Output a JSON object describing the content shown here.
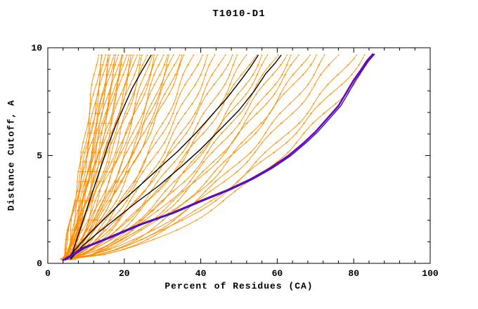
{
  "chart_data": {
    "type": "line",
    "title": "T1010-D1",
    "xlabel": "Percent of Residues (CA)",
    "ylabel": "Distance Cutoff, A",
    "xlim": [
      0,
      100
    ],
    "ylim": [
      0,
      10
    ],
    "xticks": [
      0,
      20,
      40,
      60,
      80,
      100
    ],
    "yticks": [
      0,
      5,
      10
    ],
    "x_minor_step": 4,
    "y_minor_step": 1,
    "grid": false,
    "legend": null,
    "frame_color": "#000000",
    "ensemble_color": "#ff8c00",
    "ensemble_count": 54,
    "ensemble": [
      [
        5,
        13,
        1.05
      ],
      [
        4,
        14,
        1.0
      ],
      [
        6,
        14.5,
        1.1
      ],
      [
        5,
        15,
        0.95
      ],
      [
        4,
        15.5,
        1.0
      ],
      [
        7,
        16,
        1.05
      ],
      [
        5,
        16.5,
        0.9
      ],
      [
        6,
        17,
        1.0
      ],
      [
        4,
        17.5,
        1.1
      ],
      [
        5,
        18,
        0.95
      ],
      [
        6,
        18.5,
        1.0
      ],
      [
        4,
        19,
        0.9
      ],
      [
        7,
        19.5,
        1.05
      ],
      [
        5,
        20,
        1.0
      ],
      [
        6,
        20.5,
        0.95
      ],
      [
        4,
        21,
        0.85
      ],
      [
        5,
        22,
        0.9
      ],
      [
        6,
        22.5,
        0.8
      ],
      [
        4,
        23,
        0.85
      ],
      [
        5,
        24,
        0.9
      ],
      [
        6,
        25,
        0.8
      ],
      [
        4,
        26,
        0.85
      ],
      [
        5,
        27,
        0.75
      ],
      [
        6,
        28,
        0.8
      ],
      [
        4,
        29,
        0.85
      ],
      [
        5,
        30,
        0.75
      ],
      [
        6,
        31,
        0.8
      ],
      [
        5,
        32,
        0.7
      ],
      [
        4,
        33,
        0.75
      ],
      [
        6,
        34,
        0.8
      ],
      [
        5,
        35,
        0.7
      ],
      [
        4,
        36,
        0.75
      ],
      [
        6,
        38,
        0.7
      ],
      [
        5,
        40,
        0.72
      ],
      [
        4,
        42,
        0.68
      ],
      [
        6,
        44,
        0.7
      ],
      [
        5,
        46,
        0.65
      ],
      [
        4,
        48,
        0.68
      ],
      [
        6,
        50,
        0.66
      ],
      [
        5,
        52,
        0.62
      ],
      [
        4,
        54,
        0.65
      ],
      [
        6,
        56,
        0.6
      ],
      [
        5,
        58,
        0.64
      ],
      [
        4,
        60,
        0.6
      ],
      [
        6,
        62,
        0.62
      ],
      [
        5,
        64,
        0.58
      ],
      [
        4,
        66,
        0.6
      ],
      [
        6,
        68,
        0.56
      ],
      [
        5,
        70,
        0.6
      ],
      [
        4,
        73,
        0.55
      ],
      [
        6,
        76,
        0.58
      ],
      [
        5,
        80,
        0.55
      ],
      [
        4,
        83,
        0.56
      ],
      [
        5,
        86,
        0.54
      ]
    ],
    "highlights": [
      {
        "name": "black-model-1",
        "color": "#000000",
        "width": 1.4,
        "points": [
          [
            6,
            0.2
          ],
          [
            7,
            0.8
          ],
          [
            8.5,
            1.6
          ],
          [
            10,
            2.4
          ],
          [
            11.5,
            3.2
          ],
          [
            13,
            4.0
          ],
          [
            14.5,
            4.8
          ],
          [
            16,
            5.6
          ],
          [
            18,
            6.5
          ],
          [
            20,
            7.3
          ],
          [
            22,
            8.1
          ],
          [
            24.5,
            8.9
          ],
          [
            27,
            9.65
          ]
        ]
      },
      {
        "name": "black-model-2",
        "color": "#000000",
        "width": 1.4,
        "points": [
          [
            5,
            0.2
          ],
          [
            8,
            0.8
          ],
          [
            11,
            1.4
          ],
          [
            15,
            2.1
          ],
          [
            19,
            2.8
          ],
          [
            24,
            3.6
          ],
          [
            29,
            4.4
          ],
          [
            34,
            5.2
          ],
          [
            39,
            6.1
          ],
          [
            43,
            6.9
          ],
          [
            47,
            7.7
          ],
          [
            50.5,
            8.5
          ],
          [
            53,
            9.1
          ],
          [
            55,
            9.65
          ]
        ]
      },
      {
        "name": "black-model-3",
        "color": "#000000",
        "width": 1.4,
        "points": [
          [
            6,
            0.2
          ],
          [
            9,
            0.8
          ],
          [
            13,
            1.4
          ],
          [
            18,
            2.1
          ],
          [
            23,
            2.8
          ],
          [
            29,
            3.6
          ],
          [
            35,
            4.5
          ],
          [
            40,
            5.3
          ],
          [
            45,
            6.2
          ],
          [
            50,
            7.1
          ],
          [
            54,
            8.0
          ],
          [
            57,
            8.8
          ],
          [
            59.5,
            9.3
          ],
          [
            61,
            9.65
          ]
        ]
      },
      {
        "name": "purple-model",
        "color": "#7700bb",
        "width": 2.6,
        "points": [
          [
            4,
            0.15
          ],
          [
            9,
            0.7
          ],
          [
            16,
            1.2
          ],
          [
            24,
            1.8
          ],
          [
            32,
            2.3
          ],
          [
            40,
            2.9
          ],
          [
            47,
            3.4
          ],
          [
            53,
            3.9
          ],
          [
            58,
            4.4
          ],
          [
            63,
            5.0
          ],
          [
            67,
            5.6
          ],
          [
            70,
            6.1
          ],
          [
            73,
            6.7
          ],
          [
            76,
            7.3
          ],
          [
            78,
            7.9
          ],
          [
            80,
            8.5
          ],
          [
            82,
            9.0
          ],
          [
            83.5,
            9.4
          ],
          [
            85,
            9.7
          ]
        ]
      },
      {
        "name": "blue-model",
        "color": "#2020c8",
        "width": 1.4,
        "points": [
          [
            4.6,
            0.15
          ],
          [
            9.6,
            0.7
          ],
          [
            16.6,
            1.2
          ],
          [
            24.6,
            1.8
          ],
          [
            32.6,
            2.3
          ],
          [
            40.6,
            2.9
          ],
          [
            47.6,
            3.4
          ],
          [
            53.6,
            3.9
          ],
          [
            58.6,
            4.4
          ],
          [
            63.6,
            5.0
          ],
          [
            67.6,
            5.6
          ],
          [
            70.6,
            6.1
          ],
          [
            73.6,
            6.7
          ],
          [
            76.6,
            7.3
          ],
          [
            78.6,
            7.9
          ],
          [
            80.5,
            8.5
          ],
          [
            82.4,
            9.0
          ],
          [
            83.9,
            9.4
          ],
          [
            85.4,
            9.7
          ]
        ]
      }
    ]
  }
}
